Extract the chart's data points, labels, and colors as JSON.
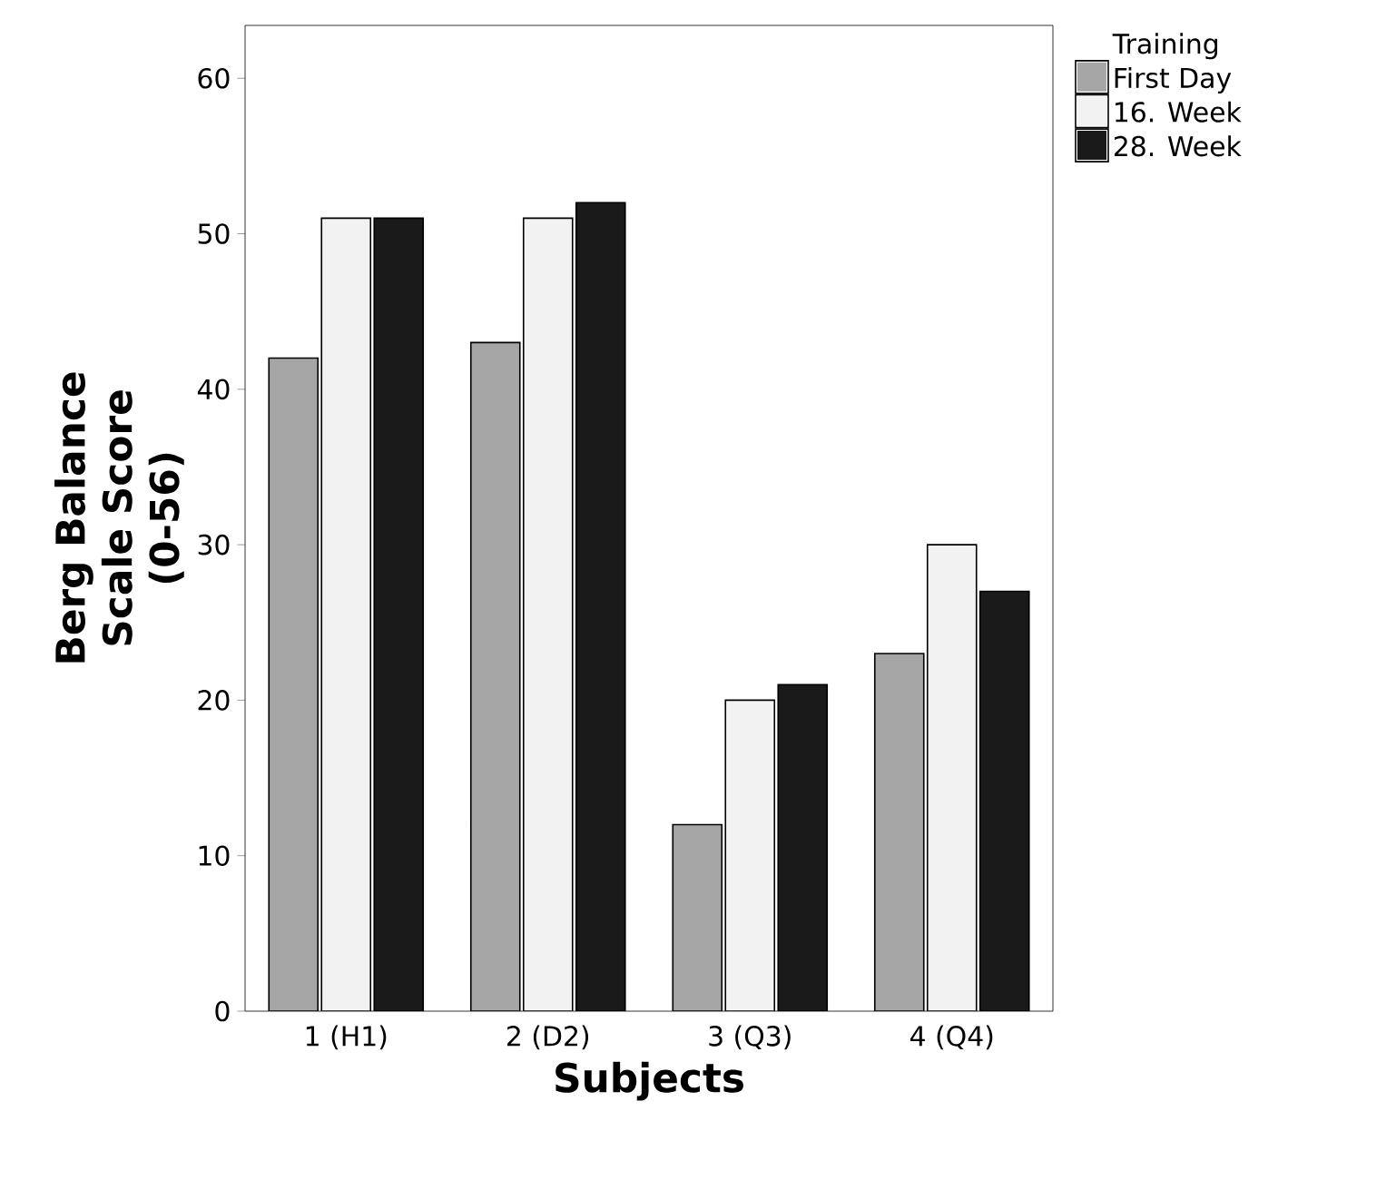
{
  "chart_data": {
    "type": "bar",
    "xlabel": "Subjects",
    "ylabel": "Berg Balance Scale Score (0-56)",
    "legend_title": "Training",
    "categories": [
      "1 (H1)",
      "2 (D2)",
      "3 (Q3)",
      "4 (Q4)"
    ],
    "series": [
      {
        "name": "First Day",
        "color": "#a6a6a6",
        "values": [
          42,
          43,
          12,
          23
        ]
      },
      {
        "name": "16. Week",
        "color": "#f2f2f2",
        "values": [
          51,
          51,
          20,
          30
        ]
      },
      {
        "name": "28. Week",
        "color": "#1a1a1a",
        "values": [
          51,
          52,
          21,
          27
        ]
      }
    ],
    "ylim": [
      0,
      63.4
    ],
    "yticks": [
      0,
      10,
      20,
      30,
      40,
      50,
      60
    ],
    "legend": "top right",
    "grid": false
  }
}
